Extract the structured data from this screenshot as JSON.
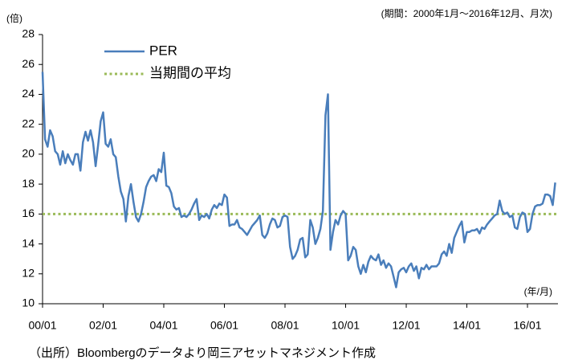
{
  "chart_data": {
    "type": "line",
    "subtitle": "(期間：2000年1月～2016年12月、月次)",
    "y_unit": "(倍)",
    "x_unit": "(年/月)",
    "source": "（出所）Bloombergのデータより岡三アセットマネジメント作成",
    "ylim": [
      10,
      28
    ],
    "yticks": [
      10,
      12,
      14,
      16,
      18,
      20,
      22,
      24,
      26,
      28
    ],
    "categories": [
      "00/01",
      null,
      null,
      null,
      null,
      null,
      null,
      null,
      null,
      null,
      null,
      null,
      null,
      null,
      null,
      null,
      null,
      null,
      null,
      null,
      null,
      null,
      null,
      null,
      "02/01",
      null,
      null,
      null,
      null,
      null,
      null,
      null,
      null,
      null,
      null,
      null,
      null,
      null,
      null,
      null,
      null,
      null,
      null,
      null,
      null,
      null,
      null,
      null,
      "04/01",
      null,
      null,
      null,
      null,
      null,
      null,
      null,
      null,
      null,
      null,
      null,
      null,
      null,
      null,
      null,
      null,
      null,
      null,
      null,
      null,
      null,
      null,
      null,
      "06/01",
      null,
      null,
      null,
      null,
      null,
      null,
      null,
      null,
      null,
      null,
      null,
      null,
      null,
      null,
      null,
      null,
      null,
      null,
      null,
      null,
      null,
      null,
      null,
      "08/01",
      null,
      null,
      null,
      null,
      null,
      null,
      null,
      null,
      null,
      null,
      null,
      null,
      null,
      null,
      null,
      null,
      null,
      null,
      null,
      null,
      null,
      null,
      null,
      "10/01",
      null,
      null,
      null,
      null,
      null,
      null,
      null,
      null,
      null,
      null,
      null,
      null,
      null,
      null,
      null,
      null,
      null,
      null,
      null,
      null,
      null,
      null,
      null,
      "12/01",
      null,
      null,
      null,
      null,
      null,
      null,
      null,
      null,
      null,
      null,
      null,
      null,
      null,
      null,
      null,
      null,
      null,
      null,
      null,
      null,
      null,
      null,
      null,
      "14/01",
      null,
      null,
      null,
      null,
      null,
      null,
      null,
      null,
      null,
      null,
      null,
      null,
      null,
      null,
      null,
      null,
      null,
      null,
      null,
      null,
      null,
      null,
      null,
      "16/01",
      null,
      null,
      null,
      null,
      null,
      null,
      null,
      null,
      null,
      null,
      null
    ],
    "series": [
      {
        "name": "PER",
        "color": "#4a7ebb",
        "values": [
          25.5,
          21.0,
          20.5,
          21.6,
          21.2,
          20.2,
          20.0,
          19.3,
          20.2,
          19.4,
          20.0,
          19.6,
          19.3,
          20.0,
          20.0,
          18.9,
          20.8,
          21.5,
          20.9,
          21.6,
          20.8,
          19.2,
          20.6,
          22.2,
          22.8,
          20.7,
          20.5,
          21.0,
          20.0,
          19.8,
          18.5,
          17.5,
          17.0,
          15.5,
          17.2,
          18.0,
          16.8,
          15.8,
          15.5,
          16.0,
          16.8,
          17.8,
          18.2,
          18.5,
          18.6,
          18.2,
          19.0,
          18.8,
          20.1,
          17.9,
          17.8,
          17.4,
          16.5,
          16.3,
          16.4,
          15.8,
          15.9,
          15.8,
          16.0,
          16.3,
          16.7,
          17.0,
          15.6,
          15.9,
          15.8,
          16.0,
          15.7,
          16.3,
          16.6,
          16.4,
          16.7,
          16.6,
          17.3,
          17.1,
          15.2,
          15.3,
          15.3,
          15.6,
          15.1,
          15.0,
          14.8,
          14.6,
          14.9,
          15.2,
          15.4,
          15.6,
          15.9,
          14.6,
          14.4,
          14.7,
          15.3,
          15.7,
          15.6,
          15.1,
          15.2,
          15.8,
          15.9,
          15.8,
          13.8,
          13.0,
          13.2,
          13.6,
          14.3,
          14.4,
          13.1,
          13.3,
          15.6,
          15.1,
          14.0,
          14.4,
          15.0,
          16.2,
          22.6,
          24.0,
          13.6,
          14.8,
          15.6,
          15.3,
          15.9,
          16.2,
          16.0,
          12.9,
          13.2,
          13.8,
          13.6,
          12.5,
          12.0,
          12.6,
          12.1,
          12.8,
          13.2,
          13.0,
          12.9,
          13.3,
          12.6,
          12.9,
          12.4,
          12.7,
          12.5,
          11.8,
          11.1,
          12.1,
          12.3,
          12.4,
          12.1,
          12.5,
          12.7,
          12.2,
          12.5,
          11.7,
          12.4,
          12.3,
          12.6,
          12.3,
          12.5,
          12.5,
          12.5,
          12.7,
          13.3,
          13.5,
          13.2,
          14.0,
          13.4,
          14.4,
          14.8,
          15.2,
          15.5,
          14.1,
          14.8,
          14.8,
          14.9,
          14.9,
          15.0,
          14.7,
          15.1,
          15.0,
          15.3,
          15.5,
          15.7,
          15.9,
          16.0,
          16.9,
          16.2,
          16.0,
          16.1,
          15.8,
          15.9,
          15.1,
          15.0,
          15.8,
          16.1,
          16.0,
          14.8,
          15.0,
          16.0,
          16.5,
          16.6,
          16.6,
          16.7,
          17.3,
          17.3,
          17.2,
          16.6,
          18.1
        ]
      }
    ],
    "average": {
      "name": "当期間の平均",
      "color": "#9bbb59",
      "value": 16
    }
  }
}
